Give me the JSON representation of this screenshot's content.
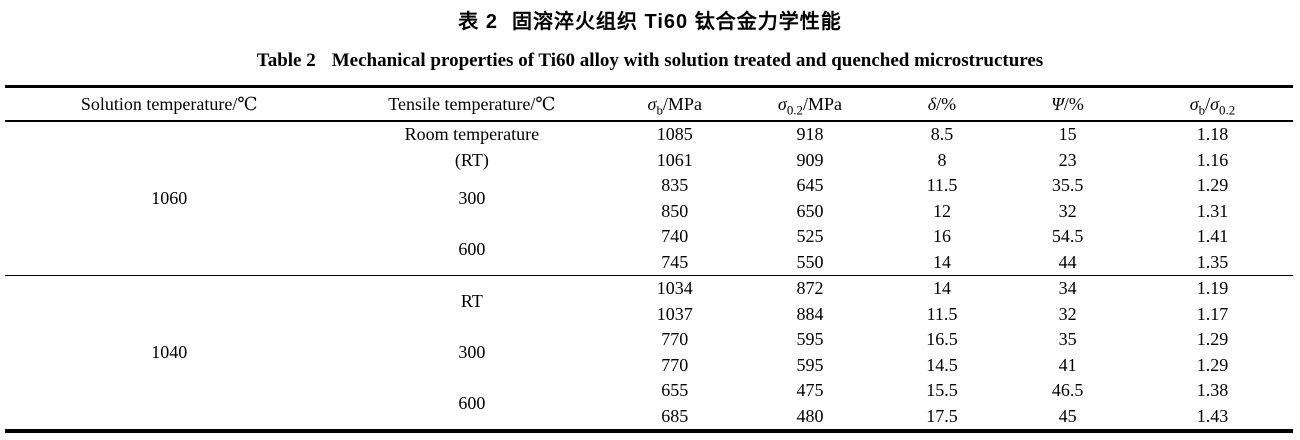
{
  "captions": {
    "zh_label": "表 2",
    "zh_text": "固溶淬火组织 Ti60 钛合金力学性能",
    "en_label": "Table 2",
    "en_text": "Mechanical properties of Ti60 alloy with solution treated and quenched microstructures"
  },
  "table": {
    "columns": [
      {
        "name": "solution-temperature",
        "segments": [
          {
            "t": "Solution temperature/℃"
          }
        ]
      },
      {
        "name": "tensile-temperature",
        "segments": [
          {
            "t": "Tensile temperature/℃"
          }
        ]
      },
      {
        "name": "sigma-b",
        "segments": [
          {
            "t": "σ",
            "i": true
          },
          {
            "t": "b",
            "sub": true
          },
          {
            "t": "/MPa"
          }
        ]
      },
      {
        "name": "sigma-0-2",
        "segments": [
          {
            "t": "σ",
            "i": true
          },
          {
            "t": "0.2",
            "sub": true
          },
          {
            "t": "/MPa"
          }
        ]
      },
      {
        "name": "delta",
        "segments": [
          {
            "t": "δ",
            "i": true
          },
          {
            "t": "/%"
          }
        ]
      },
      {
        "name": "psi",
        "segments": [
          {
            "t": "Ψ",
            "i": true
          },
          {
            "t": "/%"
          }
        ]
      },
      {
        "name": "sigma-ratio",
        "segments": [
          {
            "t": "σ",
            "i": true
          },
          {
            "t": "b",
            "sub": true
          },
          {
            "t": "/"
          },
          {
            "t": "σ",
            "i": true
          },
          {
            "t": "0.2",
            "sub": true
          }
        ]
      }
    ],
    "groups": [
      {
        "solution_temperature": "1060",
        "subgroups": [
          {
            "tensile_temperature": [
              "Room temperature",
              "(RT)"
            ],
            "rows": [
              [
                "1085",
                "918",
                "8.5",
                "15",
                "1.18"
              ],
              [
                "1061",
                "909",
                "8",
                "23",
                "1.16"
              ]
            ]
          },
          {
            "tensile_temperature": [
              "300"
            ],
            "rows": [
              [
                "835",
                "645",
                "11.5",
                "35.5",
                "1.29"
              ],
              [
                "850",
                "650",
                "12",
                "32",
                "1.31"
              ]
            ]
          },
          {
            "tensile_temperature": [
              "600"
            ],
            "rows": [
              [
                "740",
                "525",
                "16",
                "54.5",
                "1.41"
              ],
              [
                "745",
                "550",
                "14",
                "44",
                "1.35"
              ]
            ]
          }
        ]
      },
      {
        "solution_temperature": "1040",
        "subgroups": [
          {
            "tensile_temperature": [
              "RT"
            ],
            "rows": [
              [
                "1034",
                "872",
                "14",
                "34",
                "1.19"
              ],
              [
                "1037",
                "884",
                "11.5",
                "32",
                "1.17"
              ]
            ]
          },
          {
            "tensile_temperature": [
              "300"
            ],
            "rows": [
              [
                "770",
                "595",
                "16.5",
                "35",
                "1.29"
              ],
              [
                "770",
                "595",
                "14.5",
                "41",
                "1.29"
              ]
            ]
          },
          {
            "tensile_temperature": [
              "600"
            ],
            "rows": [
              [
                "655",
                "475",
                "15.5",
                "46.5",
                "1.38"
              ],
              [
                "685",
                "480",
                "17.5",
                "45",
                "1.43"
              ]
            ]
          }
        ]
      }
    ]
  }
}
